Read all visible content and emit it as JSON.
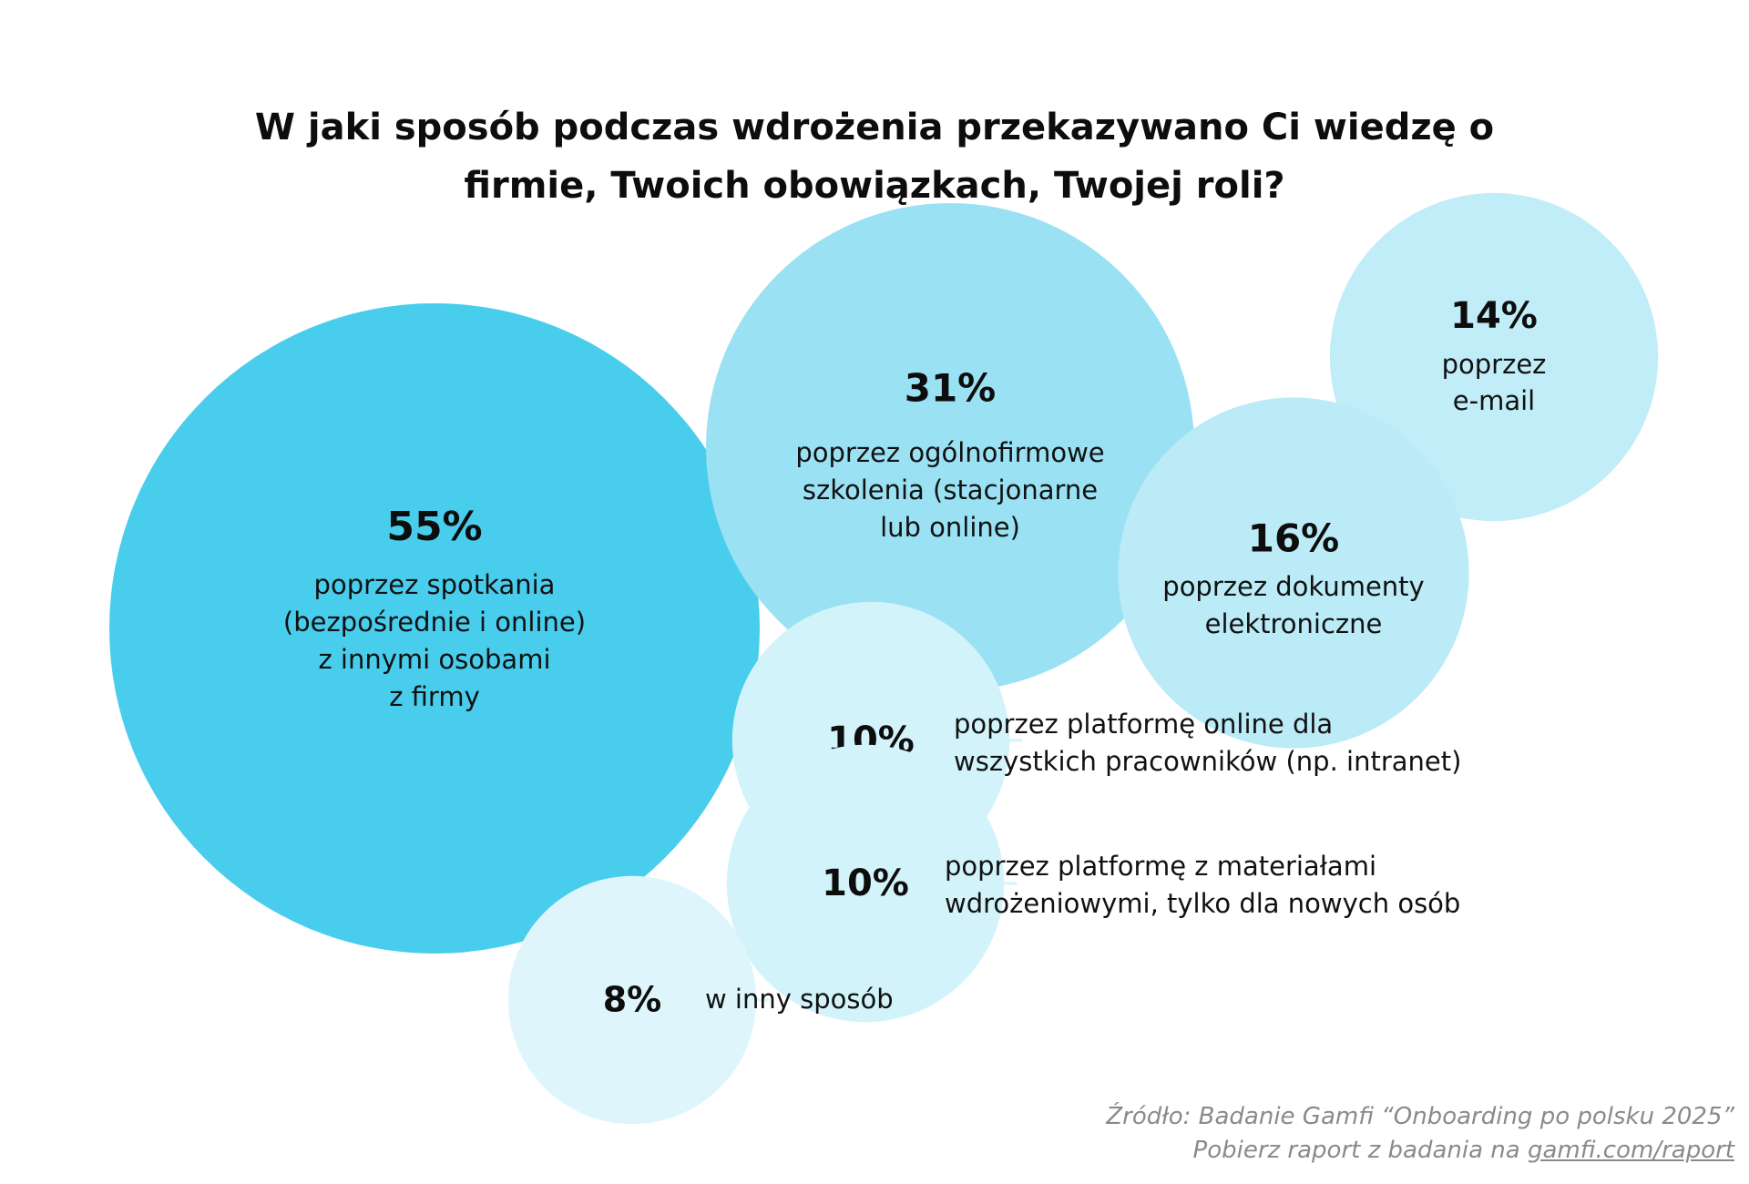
{
  "title": {
    "line1": "W jaki sposób podczas wdrożenia przekazywano Ci wiedzę o",
    "line2": "firmie, Twoich obowiązkach, Twojej roli?"
  },
  "chart_data": {
    "type": "bubble",
    "unit": "%",
    "series": [
      {
        "value": 55,
        "pct_label": "55%",
        "label_lines": [
          "poprzez spotkania",
          "(bezpośrednie i online)",
          "z innymi osobami",
          "z firmy"
        ],
        "color": "#48CDEC"
      },
      {
        "value": 31,
        "pct_label": "31%",
        "label_lines": [
          "poprzez ogólnofirmowe",
          "szkolenia (stacjonarne",
          "lub online)"
        ],
        "color": "#99E1F3"
      },
      {
        "value": 14,
        "pct_label": "14%",
        "label_lines": [
          "poprzez",
          "e-mail"
        ],
        "color": "#C0EDF8"
      },
      {
        "value": 16,
        "pct_label": "16%",
        "label_lines": [
          "poprzez dokumenty",
          "elektroniczne"
        ],
        "color": "#BAEBF7"
      },
      {
        "value": 10,
        "pct_label": "10%",
        "label_lines": [
          "poprzez platformę online dla",
          "wszystkich pracowników (np. intranet)"
        ],
        "color": "#D2F3FA"
      },
      {
        "value": 10,
        "pct_label": "10%",
        "label_lines": [
          "poprzez platformę z materiałami",
          "wdrożeniowymi, tylko dla nowych osób"
        ],
        "color": "#D2F3FA"
      },
      {
        "value": 8,
        "pct_label": "8%",
        "label_lines": [
          "w inny sposób"
        ],
        "color": "#DEF6FB"
      }
    ]
  },
  "footer": {
    "source": "Źródło: Badanie Gamfi “Onboarding po polsku 2025”",
    "download_prefix": "Pobierz raport z badania na ",
    "link_text": "gamfi.com/raport"
  }
}
